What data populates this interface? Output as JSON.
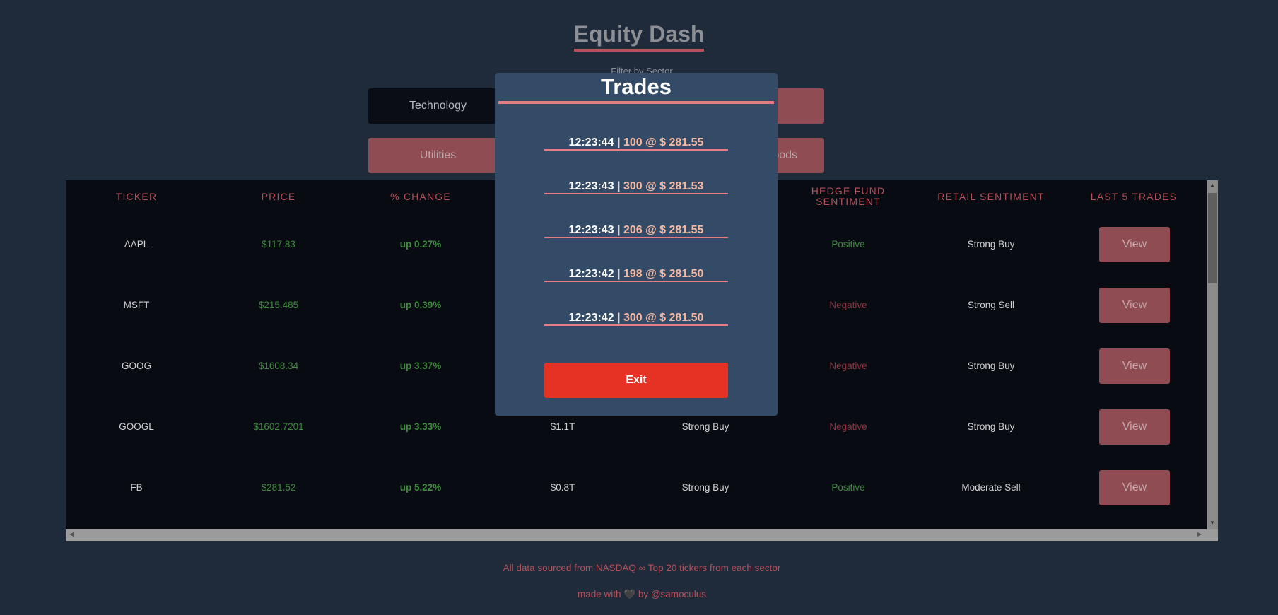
{
  "app": {
    "title": "Equity Dash"
  },
  "filter": {
    "label": "Filter by Sector",
    "sectors": [
      "Technology",
      "Utilities",
      "...oods"
    ]
  },
  "table": {
    "headers": [
      "TICKER",
      "PRICE",
      "% CHANGE",
      "HEDGE FUND SENTIMENT",
      "RETAIL SENTIMENT",
      "LAST 5 TRADES"
    ],
    "view_label": "View",
    "rows": [
      {
        "ticker": "AAPL",
        "price": "$117.83",
        "change": "up 0.27%",
        "market_cap": "",
        "analyst": "",
        "hedge": "Positive",
        "retail": "Strong Buy"
      },
      {
        "ticker": "MSFT",
        "price": "$215.485",
        "change": "up 0.39%",
        "market_cap": "",
        "analyst": "",
        "hedge": "Negative",
        "retail": "Strong Sell"
      },
      {
        "ticker": "GOOG",
        "price": "$1608.34",
        "change": "up 3.37%",
        "market_cap": "",
        "analyst": "",
        "hedge": "Negative",
        "retail": "Strong Buy"
      },
      {
        "ticker": "GOOGL",
        "price": "$1602.7201",
        "change": "up 3.33%",
        "market_cap": "$1.1T",
        "analyst": "Strong Buy",
        "hedge": "Negative",
        "retail": "Strong Buy"
      },
      {
        "ticker": "FB",
        "price": "$281.52",
        "change": "up 5.22%",
        "market_cap": "$0.8T",
        "analyst": "Strong Buy",
        "hedge": "Positive",
        "retail": "Moderate Sell"
      }
    ]
  },
  "footer": {
    "source": "All data sourced from NASDAQ ∞ Top 20 tickers from each sector",
    "made_prefix": "made with",
    "heart": "🖤",
    "made_suffix": "by @samoculus"
  },
  "modal": {
    "title": "Trades",
    "sep": "|",
    "trades": [
      {
        "time": "12:23:44",
        "detail": "100 @ $ 281.55"
      },
      {
        "time": "12:23:43",
        "detail": "300 @ $ 281.53"
      },
      {
        "time": "12:23:43",
        "detail": "206 @ $ 281.55"
      },
      {
        "time": "12:23:42",
        "detail": "198 @ $ 281.50"
      },
      {
        "time": "12:23:42",
        "detail": "300 @ $ 281.50"
      }
    ],
    "exit_label": "Exit"
  },
  "colors": {
    "accent": "#b5515b",
    "background": "#1f2a3a",
    "modal": "#344b67",
    "exit": "#e63225"
  }
}
